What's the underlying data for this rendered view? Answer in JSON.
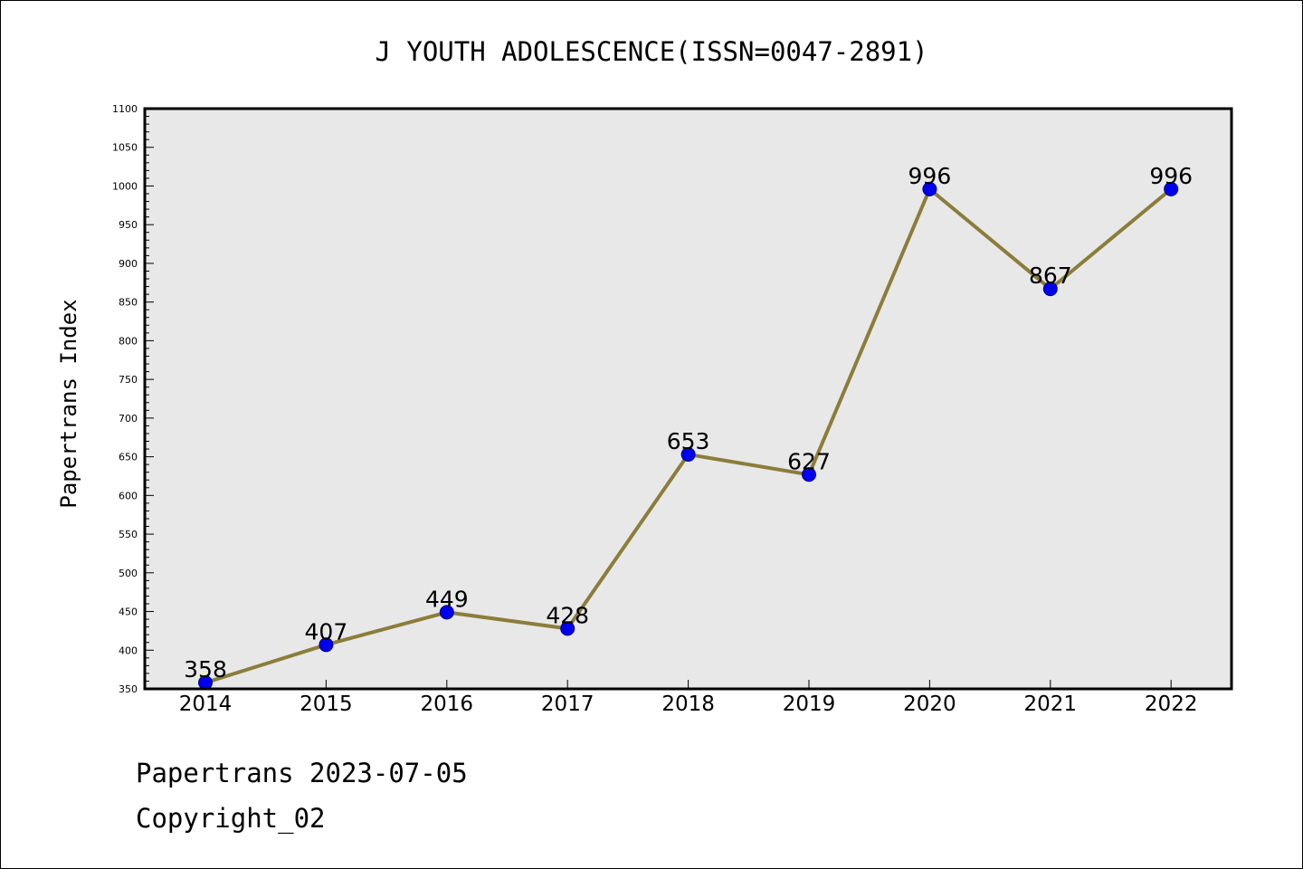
{
  "chart_data": {
    "type": "line",
    "title": "J YOUTH ADOLESCENCE(ISSN=0047-2891)",
    "xlabel": "",
    "ylabel": "Papertrans Index",
    "categories": [
      "2014",
      "2015",
      "2016",
      "2017",
      "2018",
      "2019",
      "2020",
      "2021",
      "2022"
    ],
    "values": [
      358,
      407,
      449,
      428,
      653,
      627,
      996,
      867,
      996
    ],
    "ylim": [
      350,
      1100
    ],
    "yticks": [
      350,
      400,
      450,
      500,
      550,
      600,
      650,
      700,
      750,
      800,
      850,
      900,
      950,
      1000,
      1050,
      1100
    ],
    "grid": false,
    "legend": "none",
    "colors": {
      "line": "#8b7d3a",
      "marker_fill": "#0000ee",
      "marker_edge": "#000080",
      "plot_background": "#e8e8e8",
      "axes": "#000000"
    }
  },
  "footer": {
    "line1": "Papertrans 2023-07-05",
    "line2": "Copyright_02"
  }
}
